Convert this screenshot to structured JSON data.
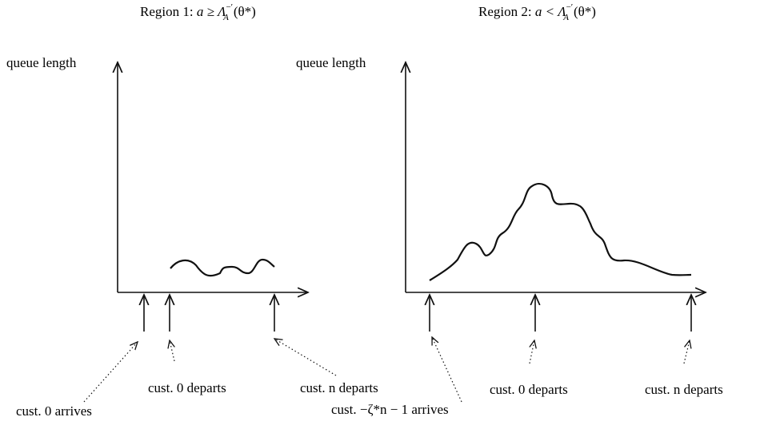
{
  "panels": [
    {
      "title": {
        "prefix": "Region 1: ",
        "math": "a ≥ Λ",
        "sub": "A",
        "sup": "−′",
        "arg": "(θ*)"
      },
      "y_label": "queue length",
      "annotations": [
        "cust. 0 arrives",
        "cust. 0 departs",
        "cust. n departs"
      ]
    },
    {
      "title": {
        "prefix": "Region 2: ",
        "math": "a < Λ",
        "sub": "A",
        "sup": "−′",
        "arg": "(θ*)"
      },
      "y_label": "queue length",
      "annotations": [
        "cust. −ζ*n − 1 arrives",
        "cust. 0 departs",
        "cust. n departs"
      ]
    }
  ]
}
